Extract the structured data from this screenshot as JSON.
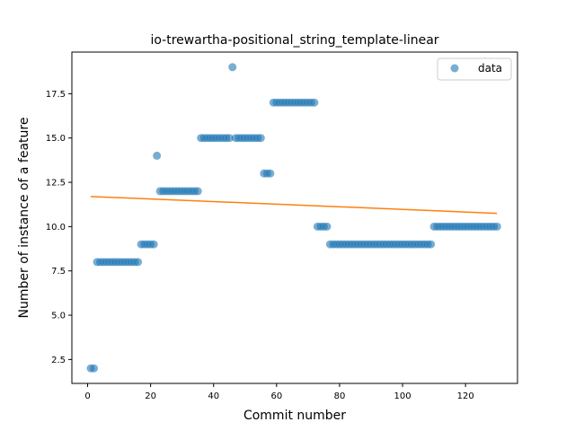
{
  "chart_data": {
    "type": "scatter",
    "title": "io-trewartha-positional_string_template-linear",
    "xlabel": "Commit number",
    "ylabel": "Number of instance of a feature",
    "xlim": [
      -5,
      136.5
    ],
    "ylim": [
      1.15,
      19.85
    ],
    "xticks": [
      0,
      20,
      40,
      60,
      80,
      100,
      120
    ],
    "xtick_labels": [
      "0",
      "20",
      "40",
      "60",
      "80",
      "100",
      "120"
    ],
    "yticks": [
      2.5,
      5.0,
      7.5,
      10.0,
      12.5,
      15.0,
      17.5
    ],
    "ytick_labels": [
      "2.5",
      "5.0",
      "7.5",
      "10.0",
      "12.5",
      "15.0",
      "17.5"
    ],
    "grid": false,
    "legend_position": "top-right",
    "series": [
      {
        "name": "data",
        "kind": "scatter",
        "color": "#1f77b4",
        "x": [
          1,
          2,
          3,
          4,
          5,
          6,
          7,
          8,
          9,
          10,
          11,
          12,
          13,
          14,
          15,
          16,
          17,
          18,
          19,
          20,
          21,
          22,
          23,
          24,
          25,
          26,
          27,
          28,
          29,
          30,
          31,
          32,
          33,
          34,
          35,
          36,
          37,
          38,
          39,
          40,
          41,
          42,
          43,
          44,
          45,
          46,
          47,
          48,
          49,
          50,
          51,
          52,
          53,
          54,
          55,
          56,
          57,
          58,
          59,
          60,
          61,
          62,
          63,
          64,
          65,
          66,
          67,
          68,
          69,
          70,
          71,
          72,
          73,
          74,
          75,
          76,
          77,
          78,
          79,
          80,
          81,
          82,
          83,
          84,
          85,
          86,
          87,
          88,
          89,
          90,
          91,
          92,
          93,
          94,
          95,
          96,
          97,
          98,
          99,
          100,
          101,
          102,
          103,
          104,
          105,
          106,
          107,
          108,
          109,
          110,
          111,
          112,
          113,
          114,
          115,
          116,
          117,
          118,
          119,
          120,
          121,
          122,
          123,
          124,
          125,
          126,
          127,
          128,
          129,
          130
        ],
        "y": [
          2,
          2,
          8,
          8,
          8,
          8,
          8,
          8,
          8,
          8,
          8,
          8,
          8,
          8,
          8,
          8,
          9,
          9,
          9,
          9,
          9,
          14,
          12,
          12,
          12,
          12,
          12,
          12,
          12,
          12,
          12,
          12,
          12,
          12,
          12,
          15,
          15,
          15,
          15,
          15,
          15,
          15,
          15,
          15,
          15,
          19,
          15,
          15,
          15,
          15,
          15,
          15,
          15,
          15,
          15,
          13,
          13,
          13,
          17,
          17,
          17,
          17,
          17,
          17,
          17,
          17,
          17,
          17,
          17,
          17,
          17,
          17,
          10,
          10,
          10,
          10,
          9,
          9,
          9,
          9,
          9,
          9,
          9,
          9,
          9,
          9,
          9,
          9,
          9,
          9,
          9,
          9,
          9,
          9,
          9,
          9,
          9,
          9,
          9,
          9,
          9,
          9,
          9,
          9,
          9,
          9,
          9,
          9,
          9,
          10,
          10,
          10,
          10,
          10,
          10,
          10,
          10,
          10,
          10,
          10,
          10,
          10,
          10,
          10,
          10,
          10,
          10,
          10,
          10,
          10
        ]
      },
      {
        "kind": "line",
        "color": "#ff7f0e",
        "x": [
          1,
          130
        ],
        "y": [
          11.7,
          10.75
        ]
      }
    ]
  }
}
